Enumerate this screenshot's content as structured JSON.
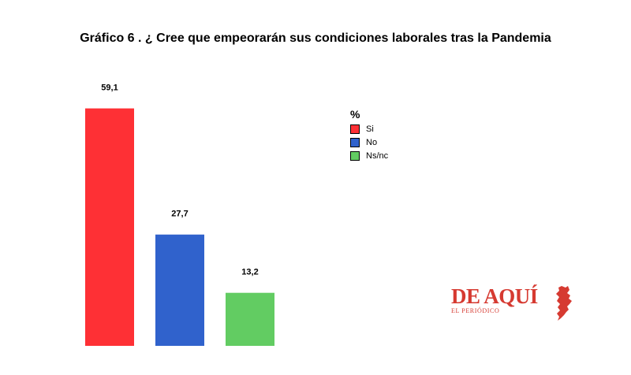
{
  "chart_data": {
    "type": "bar",
    "title": "Gráfico 6 . ¿ Cree que empeorarán sus condiciones laborales tras la Pandemia",
    "categories": [
      "Si",
      "No",
      "Ns/nc"
    ],
    "values": [
      59.1,
      27.7,
      13.2
    ],
    "value_labels": [
      "59,1",
      "27,7",
      "13,2"
    ],
    "colors": [
      "#fe3035",
      "#3062cc",
      "#62cc62"
    ],
    "ylim": [
      0,
      60
    ],
    "grid": false,
    "legend": {
      "title": "%",
      "placement": "top-right",
      "items": [
        {
          "label": "Si",
          "color": "#fe3035"
        },
        {
          "label": "No",
          "color": "#3062cc"
        },
        {
          "label": "Ns/nc",
          "color": "#62cc62"
        }
      ]
    }
  },
  "logo": {
    "name": "DE AQUÍ",
    "subtitle": "EL PERIÓDICO",
    "color": "#d63a31",
    "icon": "valencia-map-icon"
  }
}
